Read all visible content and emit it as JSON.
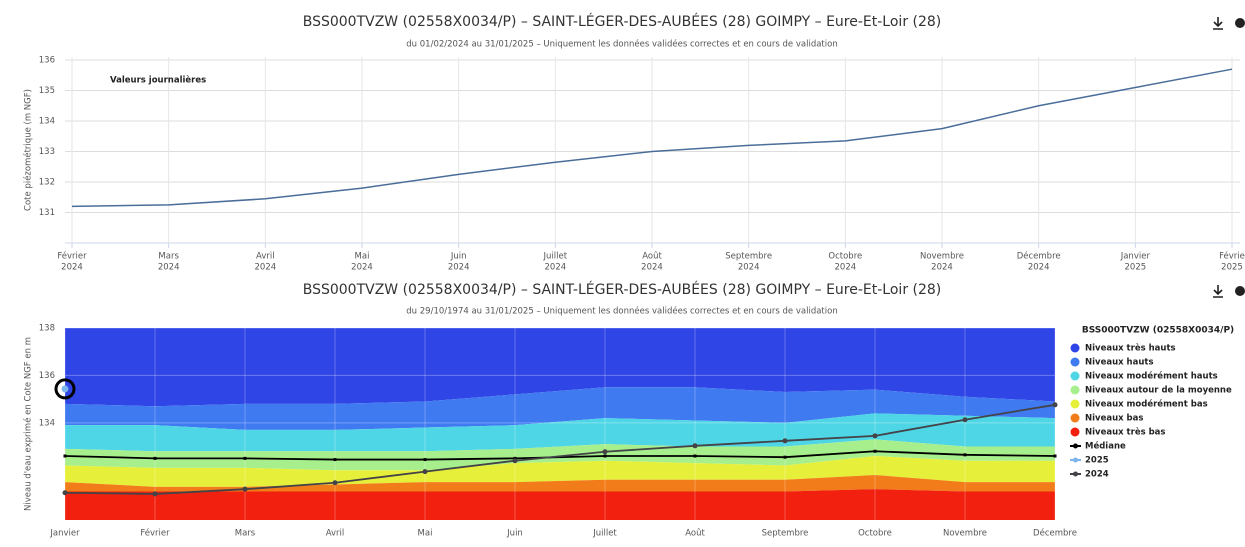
{
  "chart_data": [
    {
      "type": "line",
      "title": "BSS000TVZW (02558X0034/P) – SAINT-LÉGER-DES-AUBÉES (28) GOIMPY – Eure-Et-Loir (28)",
      "subtitle": "du 01/02/2024 au 31/01/2025 – Uniquement les données validées correctes et en cours de validation",
      "y_label": "Cote piézométrique (m NGF)",
      "annotation": "Valeurs journalières",
      "x": [
        "2024-02",
        "2024-03",
        "2024-04",
        "2024-05",
        "2024-06",
        "2024-07",
        "2024-08",
        "2024-09",
        "2024-10",
        "2024-11",
        "2024-12",
        "2025-01",
        "2025-02"
      ],
      "values": [
        131.2,
        131.25,
        131.45,
        131.8,
        132.25,
        132.65,
        133.0,
        133.2,
        133.35,
        133.75,
        134.5,
        135.1,
        135.7
      ],
      "color": "#4a6d9a",
      "xticks": [
        {
          "value": "2024-02",
          "label": "Février",
          "year": "2024"
        },
        {
          "value": "2024-03",
          "label": "Mars",
          "year": "2024"
        },
        {
          "value": "2024-04",
          "label": "Avril",
          "year": "2024"
        },
        {
          "value": "2024-05",
          "label": "Mai",
          "year": "2024"
        },
        {
          "value": "2024-06",
          "label": "Juin",
          "year": "2024"
        },
        {
          "value": "2024-07",
          "label": "Juillet",
          "year": "2024"
        },
        {
          "value": "2024-08",
          "label": "Août",
          "year": "2024"
        },
        {
          "value": "2024-09",
          "label": "Septembre",
          "year": "2024"
        },
        {
          "value": "2024-10",
          "label": "Octobre",
          "year": "2024"
        },
        {
          "value": "2024-11",
          "label": "Novembre",
          "year": "2024"
        },
        {
          "value": "2024-12",
          "label": "Décembre",
          "year": "2024"
        },
        {
          "value": "2025-01",
          "label": "Janvier",
          "year": "2025"
        },
        {
          "value": "2025-02",
          "label": "Févrie",
          "year": "2025"
        }
      ],
      "ylim": [
        130,
        136.1
      ],
      "yticks": [
        131,
        132,
        133,
        134,
        135,
        136
      ],
      "grid": true
    },
    {
      "type": "band",
      "title": "BSS000TVZW (02558X0034/P) – SAINT-LÉGER-DES-AUBÉES (28) GOIMPY – Eure-Et-Loir (28)",
      "subtitle": "du 29/10/1974 au 31/01/2025 – Uniquement les données validées correctes et en cours de validation",
      "y_label": "Niveau d'eau exprimé en Cote NGF en m",
      "legend_title": "BSS000TVZW (02558X0034/P)",
      "categories": [
        "Janvier",
        "Février",
        "Mars",
        "Avril",
        "Mai",
        "Juin",
        "Juillet",
        "Août",
        "Septembre",
        "Octobre",
        "Novembre",
        "Décembre"
      ],
      "bands": [
        {
          "name": "Niveaux très hauts",
          "color": "#2f45e6"
        },
        {
          "name": "Niveaux hauts",
          "color": "#3f7af0"
        },
        {
          "name": "Niveaux modérément hauts",
          "color": "#4fd6e6"
        },
        {
          "name": "Niveaux autour de la moyenne",
          "color": "#a6ef8c"
        },
        {
          "name": "Niveaux modérément bas",
          "color": "#e6f03a"
        },
        {
          "name": "Niveaux bas",
          "color": "#f27c1a"
        },
        {
          "name": "Niveaux très bas",
          "color": "#f2200e"
        }
      ],
      "thresholds": [
        [
          134.8,
          134.7,
          134.8,
          134.8,
          134.9,
          135.2,
          135.5,
          135.5,
          135.3,
          135.4,
          135.1,
          134.9
        ],
        [
          133.9,
          133.9,
          133.7,
          133.7,
          133.8,
          133.9,
          134.2,
          134.1,
          134.0,
          134.4,
          134.3,
          134.2
        ],
        [
          132.9,
          132.8,
          132.8,
          132.8,
          132.8,
          132.9,
          133.1,
          133.0,
          133.0,
          133.3,
          133.0,
          133.0
        ],
        [
          132.2,
          132.1,
          132.1,
          132.0,
          132.0,
          132.3,
          132.4,
          132.3,
          132.2,
          132.6,
          132.4,
          132.4
        ],
        [
          131.5,
          131.3,
          131.3,
          131.4,
          131.5,
          131.5,
          131.6,
          131.6,
          131.6,
          131.8,
          131.5,
          131.5
        ],
        [
          131.1,
          131.1,
          131.1,
          131.1,
          131.1,
          131.1,
          131.1,
          131.1,
          131.1,
          131.2,
          131.1,
          131.1
        ]
      ],
      "series": [
        {
          "name": "Médiane",
          "color": "#000000",
          "values": [
            132.6,
            132.5,
            132.5,
            132.45,
            132.45,
            132.5,
            132.6,
            132.6,
            132.55,
            132.8,
            132.65,
            132.6
          ]
        },
        {
          "name": "2025",
          "color": "#7cb5ec",
          "values": [
            135.43,
            null,
            null,
            null,
            null,
            null,
            null,
            null,
            null,
            null,
            null,
            null
          ]
        },
        {
          "name": "2024",
          "color": "#434348",
          "values": [
            131.05,
            131.0,
            131.2,
            131.47,
            131.94,
            132.4,
            132.78,
            133.03,
            133.24,
            133.45,
            134.13,
            134.76
          ]
        }
      ],
      "ylim": [
        129.9,
        138
      ],
      "yticks": [
        134,
        136,
        138
      ],
      "grid": true
    }
  ]
}
